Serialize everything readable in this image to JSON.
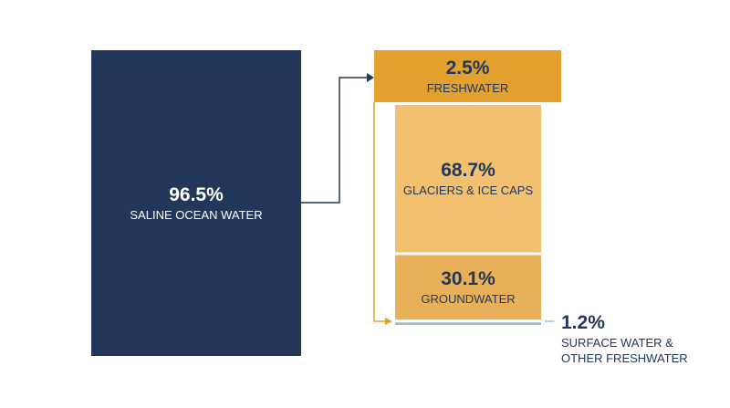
{
  "chart_data": {
    "type": "breakdown",
    "categories": [
      "SALINE OCEAN WATER",
      "FRESHWATER"
    ],
    "values": [
      96.5,
      2.5
    ],
    "value_labels": [
      "96.5%",
      "2.5%"
    ],
    "colors": [
      "#22375a",
      "#e3a02e"
    ],
    "breakdown": {
      "categories": [
        "GLACIERS & ICE CAPS",
        "GROUNDWATER",
        "SURFACE WATER & OTHER FRESHWATER"
      ],
      "values": [
        68.7,
        30.1,
        1.2
      ],
      "value_labels": [
        "68.7%",
        "30.1%",
        "1.2%"
      ],
      "colors": [
        "#f2c06e",
        "#e8b059",
        "#93c1e3"
      ]
    }
  }
}
